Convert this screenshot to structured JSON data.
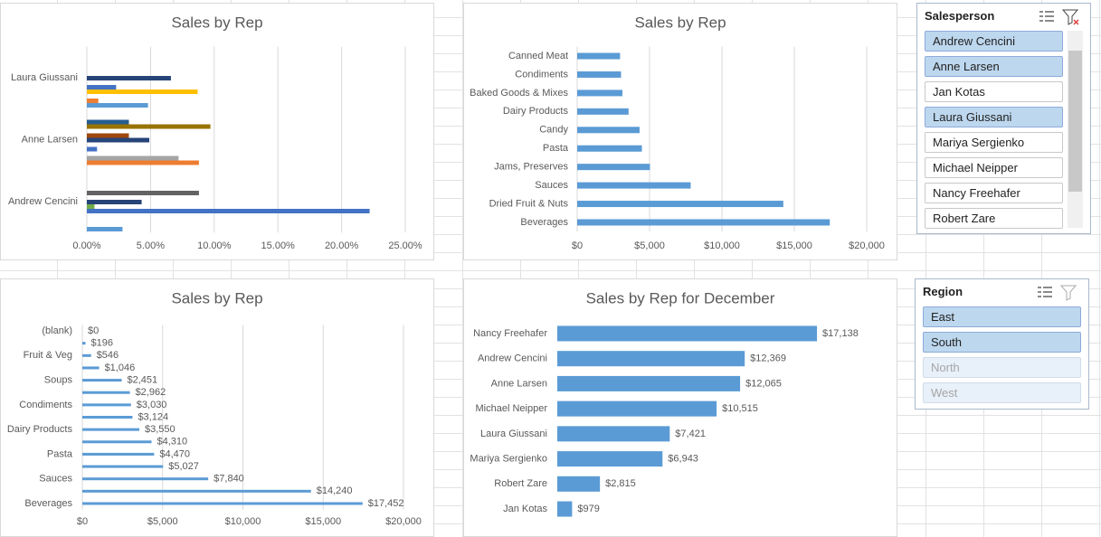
{
  "chart_data": [
    {
      "type": "bar",
      "orientation": "horizontal",
      "title": "Sales by Rep",
      "categories": [
        "Laura Giussani",
        "Anne Larsen",
        "Andrew Cencini"
      ],
      "series": [
        {
          "color": "#255e91",
          "values": [
            null,
            3.3,
            null
          ]
        },
        {
          "color": "#997300",
          "values": [
            null,
            9.7,
            null
          ]
        },
        {
          "color": "#636363",
          "values": [
            null,
            null,
            8.8
          ]
        },
        {
          "color": "#9e480e",
          "values": [
            null,
            3.3,
            null
          ]
        },
        {
          "color": "#264478",
          "values": [
            6.6,
            4.9,
            4.3
          ]
        },
        {
          "color": "#70ad47",
          "values": [
            null,
            null,
            0.6
          ]
        },
        {
          "color": "#4472c4",
          "values": [
            2.3,
            0.8,
            22.2
          ]
        },
        {
          "color": "#ffc000",
          "values": [
            8.7,
            null,
            null
          ]
        },
        {
          "color": "#a5a5a5",
          "values": [
            null,
            7.2,
            null
          ]
        },
        {
          "color": "#ed7d31",
          "values": [
            0.9,
            8.8,
            null
          ]
        },
        {
          "color": "#5b9bd5",
          "values": [
            4.8,
            null,
            2.8
          ]
        }
      ],
      "xlim": [
        0,
        25
      ],
      "xticks": [
        {
          "value": 0,
          "label": "0.00%"
        },
        {
          "value": 5,
          "label": "5.00%"
        },
        {
          "value": 10,
          "label": "10.00%"
        },
        {
          "value": 15,
          "label": "15.00%"
        },
        {
          "value": 20,
          "label": "20.00%"
        },
        {
          "value": 25,
          "label": "25.00%"
        }
      ],
      "grid": true
    },
    {
      "type": "bar",
      "orientation": "horizontal",
      "title": "Sales by Rep",
      "categories": [
        "Canned Meat",
        "Condiments",
        "Baked Goods & Mixes",
        "Dairy Products",
        "Candy",
        "Pasta",
        "Jams, Preserves",
        "Sauces",
        "Dried Fruit & Nuts",
        "Beverages"
      ],
      "values": [
        2962,
        3030,
        3124,
        3550,
        4310,
        4470,
        5027,
        7840,
        14240,
        17452
      ],
      "color": "#5b9bd5",
      "xlim": [
        0,
        20000
      ],
      "xticks": [
        {
          "value": 0,
          "label": "$0"
        },
        {
          "value": 5000,
          "label": "$5,000"
        },
        {
          "value": 10000,
          "label": "$10,000"
        },
        {
          "value": 15000,
          "label": "$15,000"
        },
        {
          "value": 20000,
          "label": "$20,000"
        }
      ],
      "grid": true
    },
    {
      "type": "bar",
      "orientation": "horizontal",
      "title": "Sales by Rep",
      "categories": [
        "(blank)",
        null,
        "Fruit & Veg",
        null,
        "Soups",
        null,
        "Condiments",
        null,
        "Dairy Products",
        null,
        "Pasta",
        null,
        "Sauces",
        null,
        "Beverages"
      ],
      "values": [
        0,
        196,
        546,
        1046,
        2451,
        2962,
        3030,
        3124,
        3550,
        4310,
        4470,
        5027,
        7840,
        14240,
        17452
      ],
      "value_labels": [
        "$0",
        "$196",
        "$546",
        "$1,046",
        "$2,451",
        "$2,962",
        "$3,030",
        "$3,124",
        "$3,550",
        "$4,310",
        "$4,470",
        "$5,027",
        "$7,840",
        "$14,240",
        "$17,452"
      ],
      "color": "#5b9bd5",
      "xlim": [
        0,
        20000
      ],
      "xticks": [
        {
          "value": 0,
          "label": "$0"
        },
        {
          "value": 5000,
          "label": "$5,000"
        },
        {
          "value": 10000,
          "label": "$10,000"
        },
        {
          "value": 15000,
          "label": "$15,000"
        },
        {
          "value": 20000,
          "label": "$20,000"
        }
      ],
      "grid": true
    },
    {
      "type": "bar",
      "orientation": "horizontal",
      "title": "Sales by Rep for December",
      "categories": [
        "Nancy Freehafer",
        "Andrew Cencini",
        "Anne Larsen",
        "Michael Neipper",
        "Laura Giussani",
        "Mariya Sergienko",
        "Robert Zare",
        "Jan Kotas"
      ],
      "values": [
        17138,
        12369,
        12065,
        10515,
        7421,
        6943,
        2815,
        979
      ],
      "value_labels": [
        "$17,138",
        "$12,369",
        "$12,065",
        "$10,515",
        "$7,421",
        "$6,943",
        "$2,815",
        "$979"
      ],
      "color": "#5b9bd5",
      "grid": false
    }
  ],
  "slicers": [
    {
      "title": "Salesperson",
      "items": [
        {
          "label": "Andrew Cencini",
          "state": "selected"
        },
        {
          "label": "Anne Larsen",
          "state": "selected"
        },
        {
          "label": "Jan Kotas",
          "state": "unselected"
        },
        {
          "label": "Laura Giussani",
          "state": "selected"
        },
        {
          "label": "Mariya Sergienko",
          "state": "unselected"
        },
        {
          "label": "Michael Neipper",
          "state": "unselected"
        },
        {
          "label": "Nancy Freehafer",
          "state": "unselected"
        },
        {
          "label": "Robert Zare",
          "state": "unselected"
        }
      ]
    },
    {
      "title": "Region",
      "items": [
        {
          "label": "East",
          "state": "selected"
        },
        {
          "label": "South",
          "state": "selected"
        },
        {
          "label": "North",
          "state": "unavailable"
        },
        {
          "label": "West",
          "state": "unavailable"
        }
      ]
    }
  ]
}
